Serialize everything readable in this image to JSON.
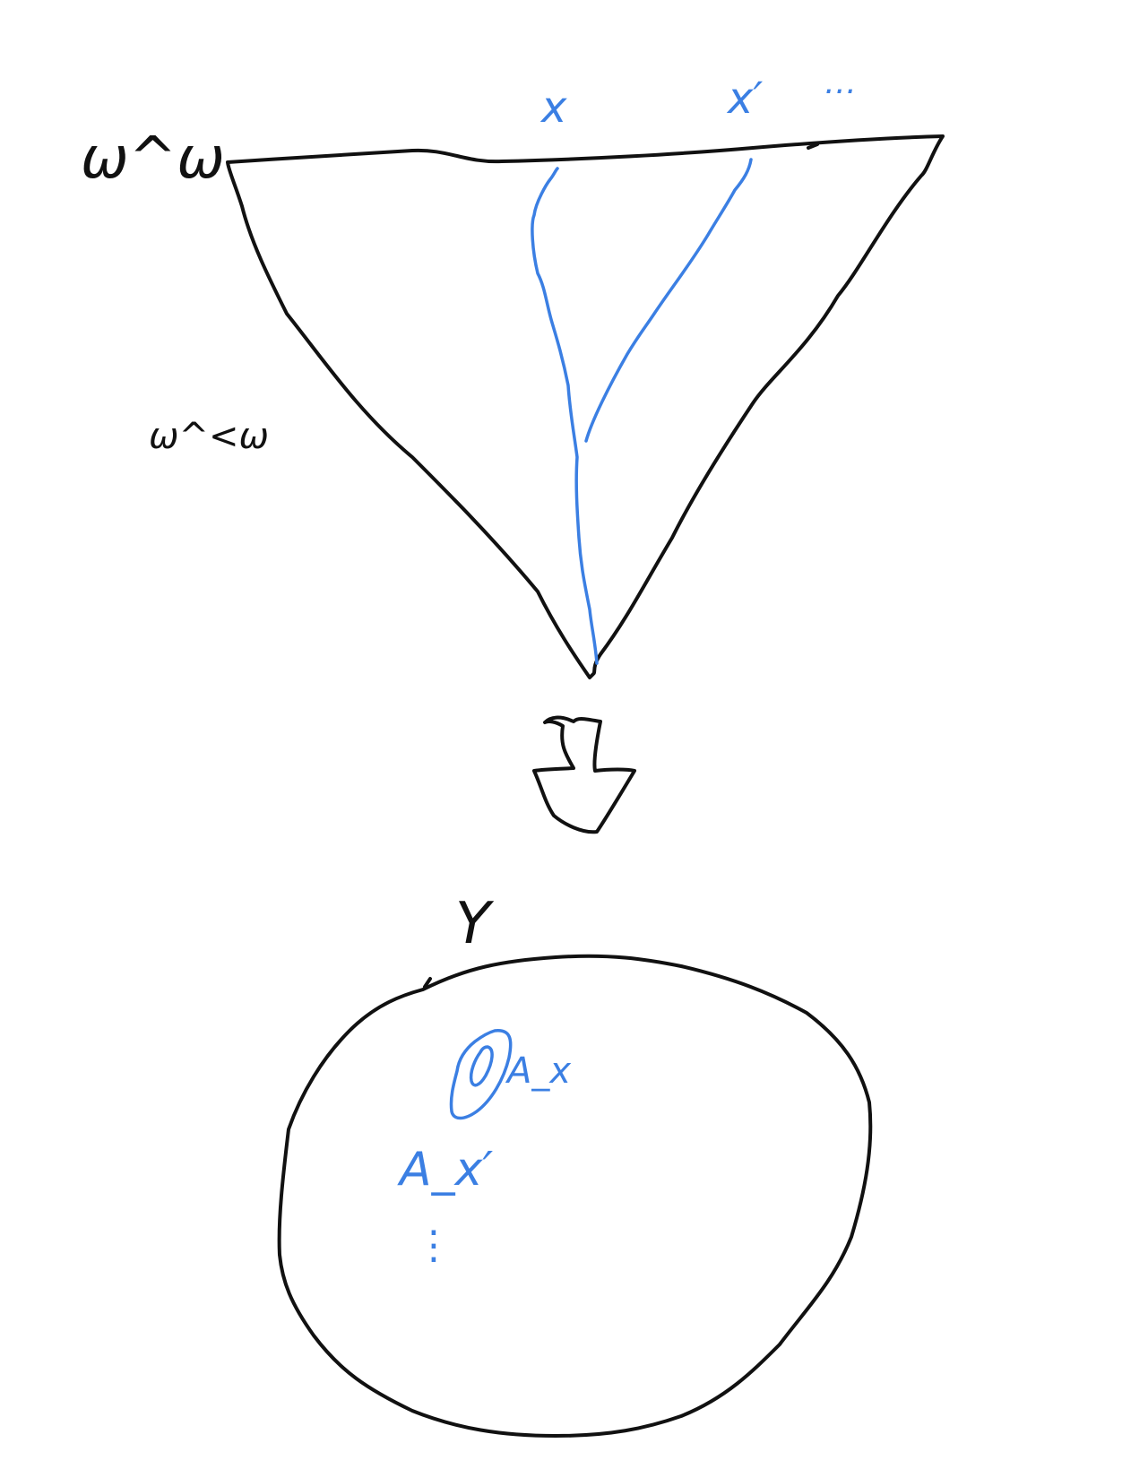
{
  "labels": {
    "baire_space": "ω^ω",
    "finite_sequences": "ω^<ω",
    "branch_x": "x",
    "branch_x_prime": "x′",
    "more_branches": "…",
    "space": "Y",
    "set_ax": "A_x",
    "set_ax_prime": "A_x′",
    "more_sets": "⋮"
  },
  "colors": {
    "ink": "#111111",
    "highlight": "#3b7fe3",
    "background": "#ffffff"
  }
}
